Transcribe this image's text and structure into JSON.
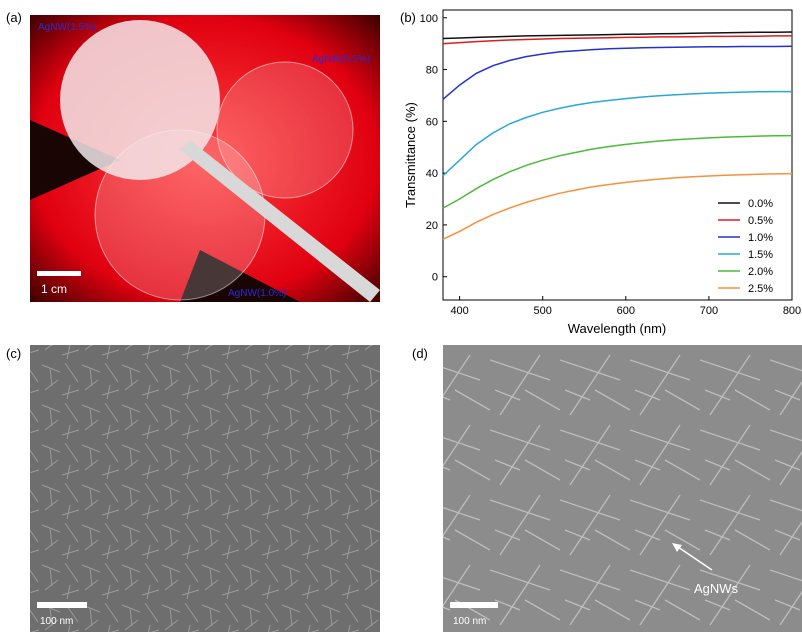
{
  "panels": {
    "a": {
      "label": "(a)",
      "tags": [
        "AgNW(1.5%)",
        "AgNW(0.5%)",
        "AgNW(1.0%)"
      ],
      "scale": "1 cm"
    },
    "c": {
      "label": "(c)",
      "scale": "100 nm"
    },
    "d": {
      "label": "(d)",
      "scale": "100 nm",
      "annotation": "AgNWs"
    }
  },
  "chart_data": {
    "type": "line",
    "panel_label": "(b)",
    "x_label": "Wavelength (nm)",
    "y_label": "Transmittance (%)",
    "x": [
      380,
      400,
      420,
      440,
      460,
      480,
      500,
      520,
      540,
      560,
      580,
      600,
      620,
      640,
      660,
      680,
      700,
      720,
      740,
      760,
      780,
      800
    ],
    "xlim": [
      380,
      800
    ],
    "xticks": [
      400,
      500,
      600,
      700,
      800
    ],
    "ylim": [
      -9,
      103
    ],
    "yticks": [
      0,
      20,
      40,
      60,
      80,
      100
    ],
    "legend": "lower-right",
    "series": [
      {
        "name": "0.0%",
        "color": "#111111",
        "values": [
          92,
          92.2,
          92.4,
          92.6,
          92.8,
          93,
          93.1,
          93.2,
          93.3,
          93.4,
          93.5,
          93.6,
          93.7,
          93.8,
          93.9,
          94,
          94.1,
          94.2,
          94.3,
          94.4,
          94.4,
          94.5
        ]
      },
      {
        "name": "0.5%",
        "color": "#e41a1c",
        "values": [
          90,
          90.4,
          90.8,
          91.1,
          91.4,
          91.6,
          91.8,
          92,
          92.1,
          92.2,
          92.3,
          92.4,
          92.5,
          92.6,
          92.6,
          92.7,
          92.8,
          92.8,
          92.9,
          92.9,
          93,
          93
        ]
      },
      {
        "name": "1.0%",
        "color": "#2233cc",
        "values": [
          68.5,
          74,
          78.5,
          81.5,
          83.5,
          85,
          86,
          86.8,
          87.3,
          87.7,
          88,
          88.2,
          88.4,
          88.5,
          88.6,
          88.7,
          88.8,
          88.8,
          88.9,
          88.9,
          88.9,
          89
        ]
      },
      {
        "name": "1.5%",
        "color": "#29a8d8",
        "values": [
          39,
          45,
          51,
          55.5,
          59,
          61.5,
          63.5,
          65,
          66.3,
          67.3,
          68.1,
          68.8,
          69.4,
          69.9,
          70.3,
          70.6,
          70.9,
          71.1,
          71.3,
          71.4,
          71.5,
          71.5
        ]
      },
      {
        "name": "2.0%",
        "color": "#4cbb3a",
        "values": [
          26.5,
          30,
          34,
          37.5,
          40.5,
          43,
          45,
          46.7,
          48,
          49.3,
          50.3,
          51.1,
          51.8,
          52.4,
          52.9,
          53.3,
          53.6,
          53.9,
          54.1,
          54.3,
          54.4,
          54.5
        ]
      },
      {
        "name": "2.5%",
        "color": "#f7913c",
        "values": [
          14.5,
          17.5,
          21,
          24,
          26.5,
          28.7,
          30.5,
          32.2,
          33.5,
          34.7,
          35.6,
          36.4,
          37.1,
          37.7,
          38.2,
          38.6,
          38.9,
          39.2,
          39.4,
          39.6,
          39.7,
          39.8
        ]
      }
    ]
  }
}
